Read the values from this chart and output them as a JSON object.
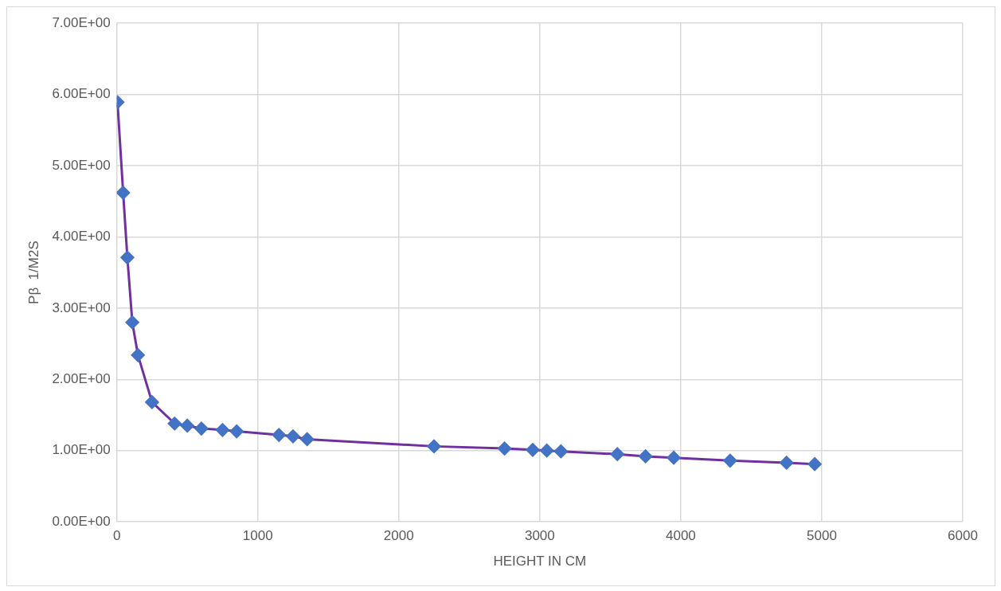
{
  "chart_data": {
    "type": "line",
    "xlabel": "HEIGHT IN CM",
    "ylabel": "Pβ  1/M2S",
    "x": [
      5,
      45,
      75,
      110,
      150,
      250,
      410,
      500,
      600,
      750,
      850,
      1150,
      1250,
      1350,
      2250,
      2750,
      2950,
      3050,
      3150,
      3550,
      3750,
      3950,
      4350,
      4750,
      4950
    ],
    "series": [
      {
        "color": "#7030a0",
        "colors": [
          "#4472c4",
          "#4472c4",
          "#4472c4",
          "#4472c4",
          "#4472c4",
          "#4472c4",
          "#4472c4",
          "#4472c4",
          "#4472c4",
          "#4472c4",
          "#4472c4",
          "#4472c4",
          "#4472c4",
          "#4472c4",
          "#4472c4",
          "#4472c4",
          "#4472c4",
          "#4472c4",
          "#4472c4",
          "#4472c4",
          "#4472c4",
          "#4472c4",
          "#4472c4",
          "#4472c4",
          "#4472c4"
        ],
        "values": [
          5.89,
          4.62,
          3.71,
          2.8,
          2.34,
          1.68,
          1.38,
          1.35,
          1.31,
          1.29,
          1.27,
          1.22,
          1.2,
          1.16,
          1.06,
          1.03,
          1.01,
          1.0,
          0.99,
          0.95,
          0.92,
          0.9,
          0.86,
          0.83,
          0.81
        ]
      }
    ],
    "marker": "diamond",
    "line_style": "solid",
    "xlim": [
      0,
      6000
    ],
    "xticks": [
      0,
      1000,
      2000,
      3000,
      4000,
      5000,
      6000
    ],
    "ylim": [
      0,
      7
    ],
    "yticks": [
      {
        "value": 0,
        "label": "0.00E+00"
      },
      {
        "value": 1,
        "label": "1.00E+00"
      },
      {
        "value": 2,
        "label": "2.00E+00"
      },
      {
        "value": 3,
        "label": "3.00E+00"
      },
      {
        "value": 4,
        "label": "4.00E+00"
      },
      {
        "value": 5,
        "label": "5.00E+00"
      },
      {
        "value": 6,
        "label": "6.00E+00"
      },
      {
        "value": 7,
        "label": "7.00E+00"
      }
    ],
    "grid": true,
    "legend": false
  }
}
